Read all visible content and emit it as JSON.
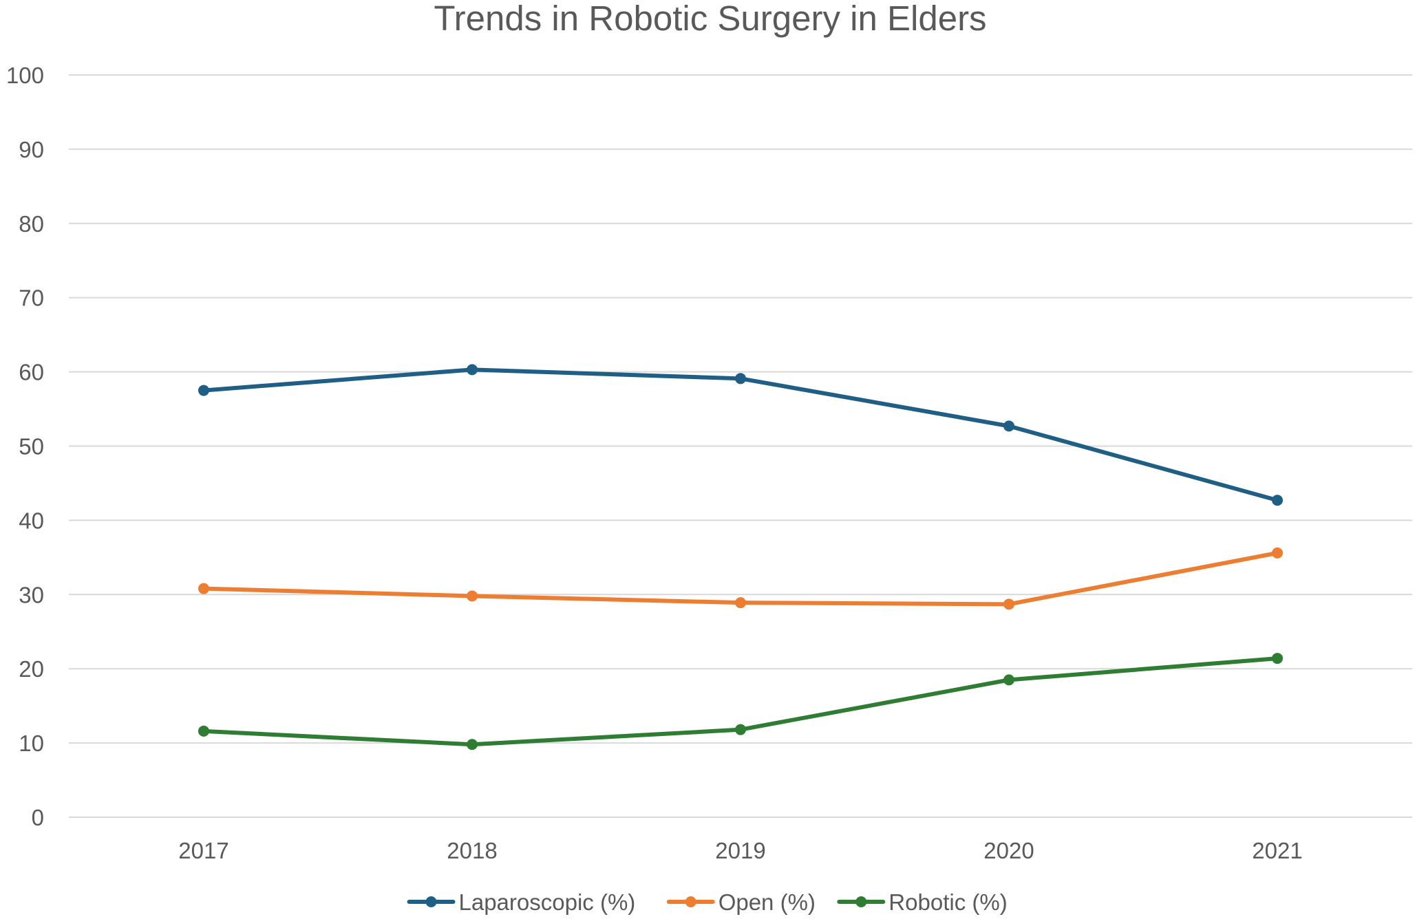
{
  "chart_data": {
    "type": "line",
    "title": "Trends in Robotic Surgery in Elders",
    "xlabel": "",
    "ylabel": "",
    "categories": [
      "2017",
      "2018",
      "2019",
      "2020",
      "2021"
    ],
    "ylim": [
      0,
      100
    ],
    "yticks": [
      "0",
      "10",
      "20",
      "30",
      "40",
      "50",
      "60",
      "70",
      "80",
      "90",
      "100"
    ],
    "grid": true,
    "legend_position": "bottom",
    "series": [
      {
        "name": "Laparoscopic (%)",
        "color": "#1f5f85",
        "values": [
          57.5,
          60.3,
          59.1,
          52.7,
          42.7
        ]
      },
      {
        "name": "Open (%)",
        "color": "#ed7d31",
        "values": [
          30.8,
          29.8,
          28.9,
          28.7,
          35.6
        ]
      },
      {
        "name": "Robotic (%)",
        "color": "#2e7d32",
        "values": [
          11.6,
          9.8,
          11.8,
          18.5,
          21.4
        ]
      }
    ]
  }
}
